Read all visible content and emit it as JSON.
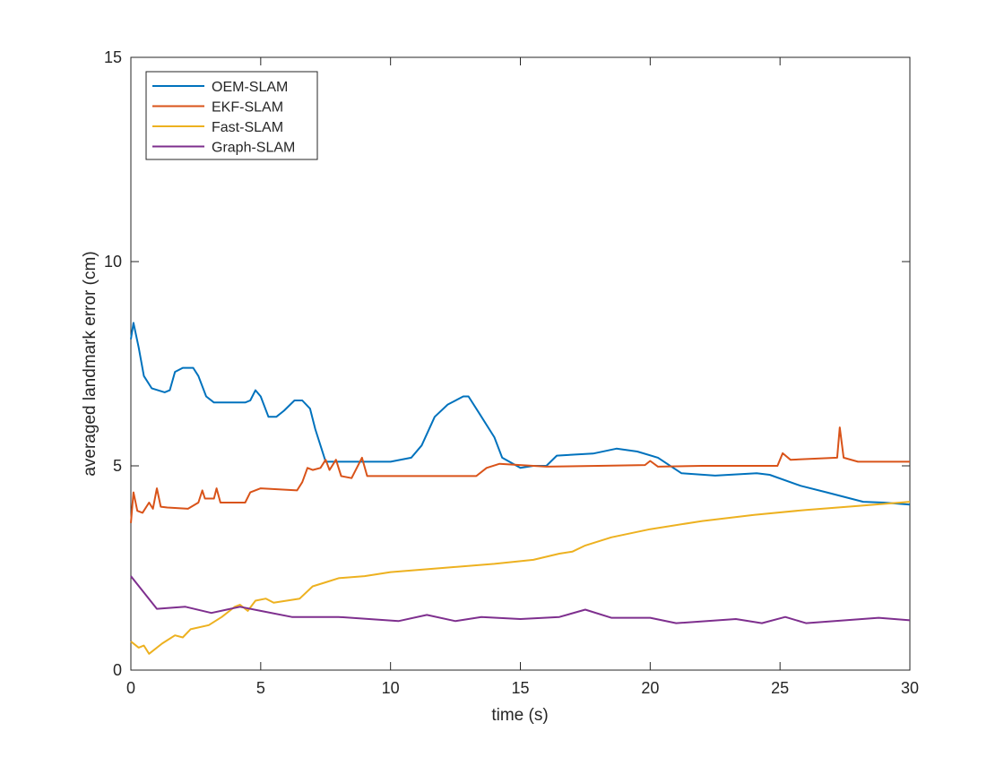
{
  "chart_data": {
    "type": "line",
    "title": "",
    "xlabel": "time (s)",
    "ylabel": "averaged landmark error (cm)",
    "xlim": [
      0,
      30
    ],
    "ylim": [
      0,
      15
    ],
    "xticks": [
      0,
      5,
      10,
      15,
      20,
      25,
      30
    ],
    "yticks": [
      0,
      5,
      10,
      15
    ],
    "grid": false,
    "legend_position": "top-left",
    "series": [
      {
        "name": "OEM-SLAM",
        "color": "#0072BD",
        "points": [
          [
            0,
            8.1
          ],
          [
            0.1,
            8.5
          ],
          [
            0.3,
            7.9
          ],
          [
            0.5,
            7.2
          ],
          [
            0.8,
            6.9
          ],
          [
            1.3,
            6.8
          ],
          [
            1.5,
            6.85
          ],
          [
            1.7,
            7.3
          ],
          [
            2.0,
            7.4
          ],
          [
            2.4,
            7.4
          ],
          [
            2.6,
            7.2
          ],
          [
            2.9,
            6.7
          ],
          [
            3.2,
            6.55
          ],
          [
            4.4,
            6.55
          ],
          [
            4.6,
            6.6
          ],
          [
            4.8,
            6.85
          ],
          [
            5.0,
            6.7
          ],
          [
            5.3,
            6.2
          ],
          [
            5.6,
            6.2
          ],
          [
            5.9,
            6.35
          ],
          [
            6.3,
            6.6
          ],
          [
            6.6,
            6.6
          ],
          [
            6.9,
            6.4
          ],
          [
            7.1,
            5.9
          ],
          [
            7.5,
            5.1
          ],
          [
            7.8,
            5.1
          ],
          [
            10,
            5.1
          ],
          [
            10.8,
            5.2
          ],
          [
            11.2,
            5.5
          ],
          [
            11.7,
            6.2
          ],
          [
            12.2,
            6.5
          ],
          [
            12.8,
            6.7
          ],
          [
            13.0,
            6.7
          ],
          [
            13.4,
            6.3
          ],
          [
            14.0,
            5.7
          ],
          [
            14.3,
            5.2
          ],
          [
            15.0,
            4.95
          ],
          [
            15.5,
            5.0
          ],
          [
            16.0,
            5.0
          ],
          [
            16.4,
            5.25
          ],
          [
            17.8,
            5.3
          ],
          [
            18.7,
            5.42
          ],
          [
            19.5,
            5.35
          ],
          [
            20.3,
            5.2
          ],
          [
            21.2,
            4.82
          ],
          [
            22.5,
            4.76
          ],
          [
            24.1,
            4.82
          ],
          [
            24.6,
            4.78
          ],
          [
            25.8,
            4.51
          ],
          [
            26.8,
            4.35
          ],
          [
            28.2,
            4.12
          ],
          [
            29.0,
            4.1
          ],
          [
            30,
            4.05
          ]
        ]
      },
      {
        "name": "EKF-SLAM",
        "color": "#D95319",
        "points": [
          [
            0,
            3.6
          ],
          [
            0.1,
            4.35
          ],
          [
            0.25,
            3.9
          ],
          [
            0.45,
            3.85
          ],
          [
            0.7,
            4.1
          ],
          [
            0.85,
            3.95
          ],
          [
            1.0,
            4.45
          ],
          [
            1.15,
            4.0
          ],
          [
            1.4,
            3.98
          ],
          [
            2.2,
            3.95
          ],
          [
            2.6,
            4.1
          ],
          [
            2.75,
            4.4
          ],
          [
            2.85,
            4.2
          ],
          [
            3.2,
            4.2
          ],
          [
            3.3,
            4.45
          ],
          [
            3.45,
            4.1
          ],
          [
            4.4,
            4.1
          ],
          [
            4.6,
            4.35
          ],
          [
            5.0,
            4.45
          ],
          [
            6.4,
            4.4
          ],
          [
            6.6,
            4.6
          ],
          [
            6.8,
            4.95
          ],
          [
            7.0,
            4.9
          ],
          [
            7.3,
            4.95
          ],
          [
            7.5,
            5.15
          ],
          [
            7.65,
            4.9
          ],
          [
            7.9,
            5.15
          ],
          [
            8.1,
            4.75
          ],
          [
            8.5,
            4.7
          ],
          [
            8.9,
            5.2
          ],
          [
            9.1,
            4.75
          ],
          [
            10,
            4.75
          ],
          [
            12,
            4.75
          ],
          [
            13.3,
            4.75
          ],
          [
            13.7,
            4.95
          ],
          [
            14.2,
            5.05
          ],
          [
            16,
            4.98
          ],
          [
            18,
            5.0
          ],
          [
            19.8,
            5.02
          ],
          [
            20.0,
            5.12
          ],
          [
            20.3,
            4.98
          ],
          [
            22,
            5.0
          ],
          [
            24.9,
            5.0
          ],
          [
            25.1,
            5.31
          ],
          [
            25.4,
            5.15
          ],
          [
            27.2,
            5.2
          ],
          [
            27.3,
            5.94
          ],
          [
            27.45,
            5.2
          ],
          [
            28,
            5.1
          ],
          [
            30,
            5.1
          ]
        ]
      },
      {
        "name": "Fast-SLAM",
        "color": "#EDB120",
        "points": [
          [
            0,
            0.7
          ],
          [
            0.3,
            0.55
          ],
          [
            0.5,
            0.6
          ],
          [
            0.7,
            0.4
          ],
          [
            1.2,
            0.65
          ],
          [
            1.7,
            0.85
          ],
          [
            2.0,
            0.8
          ],
          [
            2.3,
            1.0
          ],
          [
            3.0,
            1.1
          ],
          [
            3.5,
            1.3
          ],
          [
            4.0,
            1.55
          ],
          [
            4.2,
            1.6
          ],
          [
            4.5,
            1.45
          ],
          [
            4.8,
            1.7
          ],
          [
            5.2,
            1.75
          ],
          [
            5.5,
            1.65
          ],
          [
            6.5,
            1.75
          ],
          [
            7.0,
            2.05
          ],
          [
            7.5,
            2.15
          ],
          [
            8.0,
            2.25
          ],
          [
            9.0,
            2.3
          ],
          [
            10,
            2.4
          ],
          [
            12,
            2.5
          ],
          [
            14,
            2.6
          ],
          [
            15.5,
            2.7
          ],
          [
            16.5,
            2.85
          ],
          [
            17.0,
            2.9
          ],
          [
            17.5,
            3.05
          ],
          [
            18.5,
            3.25
          ],
          [
            20,
            3.45
          ],
          [
            22,
            3.65
          ],
          [
            24,
            3.8
          ],
          [
            26,
            3.92
          ],
          [
            28,
            4.02
          ],
          [
            30,
            4.12
          ]
        ]
      },
      {
        "name": "Graph-SLAM",
        "color": "#7E2F8E",
        "points": [
          [
            0,
            2.3
          ],
          [
            1.0,
            1.5
          ],
          [
            2.1,
            1.55
          ],
          [
            3.1,
            1.4
          ],
          [
            4.2,
            1.55
          ],
          [
            5,
            1.45
          ],
          [
            6.2,
            1.3
          ],
          [
            8,
            1.3
          ],
          [
            10.3,
            1.2
          ],
          [
            11.4,
            1.35
          ],
          [
            12.5,
            1.2
          ],
          [
            13.5,
            1.3
          ],
          [
            15.0,
            1.25
          ],
          [
            16.5,
            1.3
          ],
          [
            17.5,
            1.48
          ],
          [
            18.5,
            1.28
          ],
          [
            20,
            1.28
          ],
          [
            21.0,
            1.15
          ],
          [
            23.3,
            1.25
          ],
          [
            24.3,
            1.15
          ],
          [
            25.2,
            1.3
          ],
          [
            26.0,
            1.15
          ],
          [
            28.8,
            1.28
          ],
          [
            30,
            1.22
          ]
        ]
      }
    ]
  }
}
